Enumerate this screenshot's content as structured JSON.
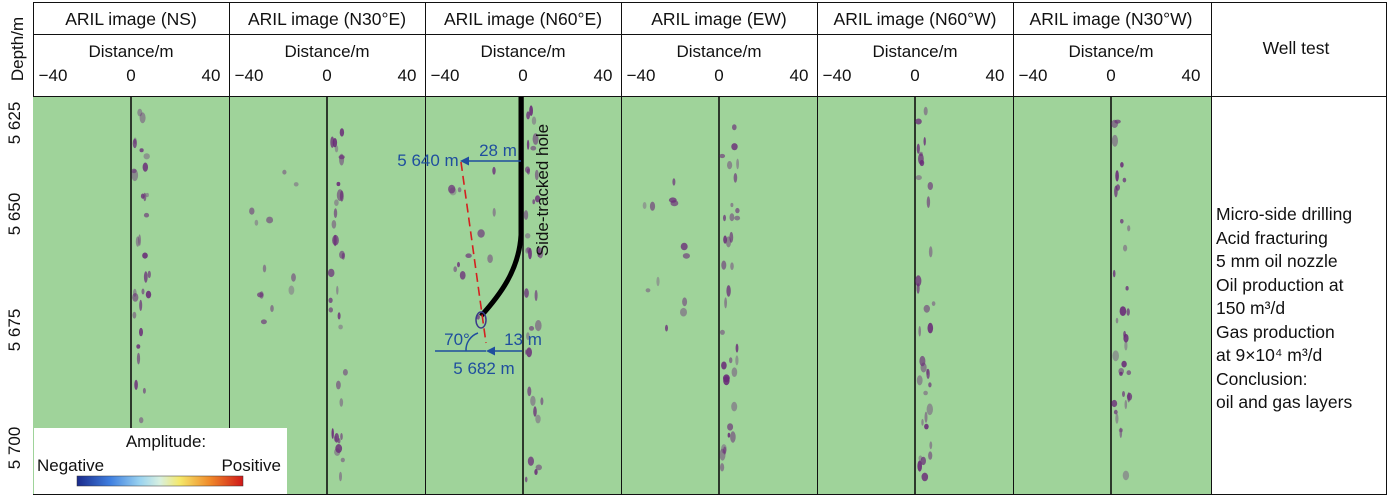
{
  "depth_header": "Depth/m",
  "depth_ticks": [
    "5 625",
    "5 650",
    "5 675",
    "5 700"
  ],
  "distance_label": "Distance/m",
  "distance_ticks": [
    "−40",
    "0",
    "40"
  ],
  "panels": [
    {
      "title": "ARIL image (NS)"
    },
    {
      "title": "ARIL image  (N30°E)"
    },
    {
      "title": "ARIL image (N60°E)"
    },
    {
      "title": "ARIL image  (EW)"
    },
    {
      "title": "ARIL image (N60°W)"
    },
    {
      "title": "ARIL image (N30°W)"
    }
  ],
  "well_test": {
    "header": "Well test",
    "lines": [
      "Micro-side drilling",
      "Acid fracturing",
      "5 mm oil nozzle",
      "Oil production at",
      "150 m³/d",
      "Gas production",
      "at 9×10⁴ m³/d",
      "Conclusion:",
      "oil and gas layers"
    ]
  },
  "annotations": {
    "side_tracked_hole": "Side-tracked hole",
    "top_depth": "5 640 m",
    "top_offset": "28 m",
    "bottom_depth": "5 682 m",
    "bottom_offset": "13 m",
    "angle": "70°"
  },
  "legend": {
    "title": "Amplitude:",
    "negative": "Negative",
    "positive": "Positive"
  },
  "colors": {
    "panel_background": "#9fd39a",
    "anomaly": "#6a2a78",
    "annotation_blue": "#1f4e9e",
    "fracture_red": "#d42020",
    "hole_black": "#000000"
  }
}
